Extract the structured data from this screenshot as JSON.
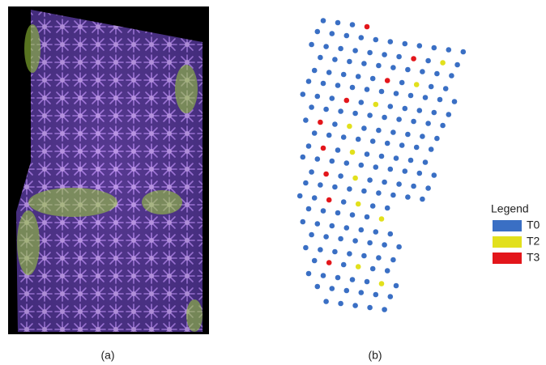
{
  "panels": [
    {
      "label": "(a)"
    },
    {
      "label": "(b)"
    }
  ],
  "legend": {
    "title": "Legend",
    "items": [
      {
        "name": "T0",
        "color": "#3a6fc4"
      },
      {
        "name": "T2",
        "color": "#e2e01c"
      },
      {
        "name": "T3",
        "color": "#e3161b"
      }
    ]
  }
}
